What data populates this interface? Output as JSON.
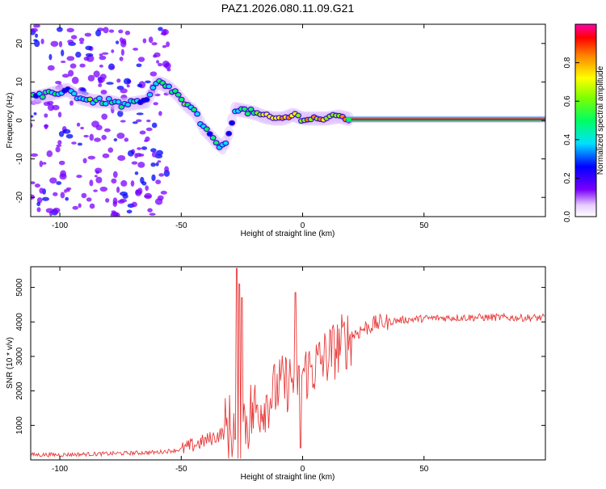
{
  "figure": {
    "title": "PAZ1.2026.080.11.09.G21"
  },
  "chart_data": [
    {
      "type": "heatmap",
      "name": "spectrogram",
      "xlabel": "Height of straight line (km)",
      "ylabel": "Frequency (Hz)",
      "xlim": [
        -112,
        100
      ],
      "ylim": [
        -25,
        25
      ],
      "xticks": [
        -100,
        -50,
        0,
        50
      ],
      "yticks": [
        -20,
        -10,
        0,
        10,
        20
      ],
      "ridge": {
        "description": "frequency of the main spectral ridge versus height",
        "x": [
          -110,
          -103,
          -97,
          -92,
          -86,
          -80,
          -74,
          -69,
          -64,
          -60,
          -56,
          -52,
          -48,
          -44,
          -41,
          -38,
          -35,
          -33,
          -31,
          -28,
          -24,
          -20,
          -16,
          -12,
          -8,
          -4,
          0,
          5,
          10,
          15,
          20,
          30,
          50,
          75,
          100
        ],
        "y": [
          6,
          7,
          8,
          6,
          5,
          5,
          4,
          4.5,
          5,
          10,
          9,
          7,
          4,
          2,
          -2,
          -4,
          -6,
          -7,
          -5,
          3,
          2.5,
          2,
          1,
          0.5,
          0.5,
          1.5,
          0.5,
          0.5,
          0.5,
          1,
          0.3,
          0.3,
          0.3,
          0.3,
          0.3
        ],
        "amplitude": [
          0.3,
          0.35,
          0.3,
          0.35,
          0.4,
          0.4,
          0.4,
          0.35,
          0.3,
          0.35,
          0.45,
          0.45,
          0.45,
          0.35,
          0.4,
          0.35,
          0.35,
          0.3,
          0.3,
          0.3,
          0.4,
          0.55,
          0.6,
          0.7,
          0.75,
          0.6,
          0.65,
          0.7,
          0.6,
          0.65,
          1.0,
          1.0,
          1.0,
          1.0,
          1.0
        ]
      }
    },
    {
      "type": "colorbar",
      "name": "amplitude-colorbar",
      "label": "Normalized spectral amplitude",
      "range": [
        0,
        1
      ],
      "ticks": [
        0.0,
        0.2,
        0.4,
        0.6,
        0.8
      ],
      "tick_labels": [
        "0.0",
        "0.2",
        "0.4",
        "0.6",
        "0.8"
      ]
    },
    {
      "type": "line",
      "name": "snr",
      "xlabel": "Height of straight line (km)",
      "ylabel": "SNR (10 * v/v)",
      "xlim": [
        -112,
        100
      ],
      "ylim": [
        0,
        5600
      ],
      "xticks": [
        -100,
        -50,
        0,
        50
      ],
      "yticks": [
        1000,
        2000,
        3000,
        4000,
        5000
      ],
      "color": "#e83a3a",
      "trend": {
        "x": [
          -112,
          -100,
          -80,
          -60,
          -50,
          -42,
          -35,
          -30,
          -25,
          -20,
          -15,
          -10,
          -5,
          0,
          5,
          10,
          15,
          20,
          25,
          30,
          40,
          50,
          60,
          70,
          80,
          90,
          100
        ],
        "y": [
          150,
          150,
          180,
          220,
          300,
          500,
          700,
          900,
          1100,
          1400,
          1700,
          2100,
          2300,
          2500,
          2700,
          3000,
          3300,
          3600,
          3800,
          3950,
          4050,
          4100,
          4120,
          4130,
          4130,
          4120,
          4120
        ]
      },
      "spikes": [
        {
          "x": -27,
          "y": 5550
        },
        {
          "x": -26,
          "y": 5100
        },
        {
          "x": -25,
          "y": 4700
        },
        {
          "x": -3,
          "y": 4850
        },
        {
          "x": -1,
          "y": 350
        },
        {
          "x": -28,
          "y": 600
        }
      ]
    }
  ]
}
